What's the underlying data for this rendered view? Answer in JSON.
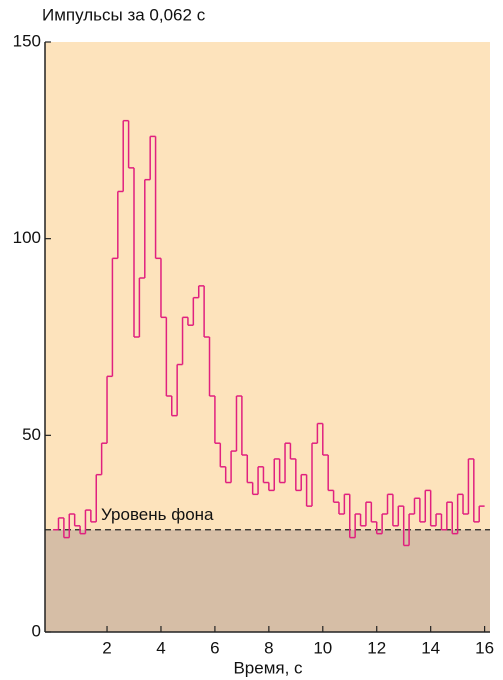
{
  "chart_data": {
    "type": "step",
    "title": "Импульсы за 0,062 с",
    "xlabel": "Время, с",
    "annotation": "Уровень фона",
    "background_level": 26,
    "x": [
      0,
      0.2,
      0.4,
      0.6,
      0.8,
      1.0,
      1.2,
      1.4,
      1.6,
      1.8,
      2.0,
      2.2,
      2.4,
      2.6,
      2.8,
      3.0,
      3.2,
      3.4,
      3.6,
      3.8,
      4.0,
      4.2,
      4.4,
      4.6,
      4.8,
      5.0,
      5.2,
      5.4,
      5.6,
      5.8,
      6.0,
      6.2,
      6.4,
      6.6,
      6.8,
      7.0,
      7.2,
      7.4,
      7.6,
      7.8,
      8.0,
      8.2,
      8.4,
      8.6,
      8.8,
      9.0,
      9.2,
      9.4,
      9.6,
      9.8,
      10.0,
      10.2,
      10.4,
      10.6,
      10.8,
      11.0,
      11.2,
      11.4,
      11.6,
      11.8,
      12.0,
      12.2,
      12.4,
      12.6,
      12.8,
      13.0,
      13.2,
      13.4,
      13.6,
      13.8,
      14.0,
      14.2,
      14.4,
      14.6,
      14.8,
      15.0,
      15.2,
      15.4,
      15.6,
      15.8
    ],
    "values": [
      26,
      29,
      24,
      30,
      27,
      25,
      31,
      28,
      40,
      48,
      65,
      95,
      112,
      130,
      118,
      75,
      90,
      115,
      126,
      95,
      80,
      60,
      55,
      68,
      80,
      78,
      85,
      88,
      75,
      60,
      48,
      42,
      38,
      46,
      60,
      45,
      38,
      35,
      42,
      38,
      36,
      44,
      38,
      48,
      44,
      36,
      40,
      32,
      48,
      53,
      45,
      36,
      33,
      30,
      35,
      24,
      30,
      27,
      33,
      28,
      25,
      30,
      35,
      27,
      32,
      22,
      30,
      34,
      28,
      36,
      27,
      30,
      26,
      33,
      25,
      35,
      30,
      44,
      28,
      32
    ],
    "color": "#e0207f",
    "plot_color": "#fde3bc",
    "background_color": "#d6bea6",
    "xlim": [
      -0.3,
      16.2
    ],
    "xticks": [
      2,
      4,
      6,
      8,
      10,
      12,
      14,
      16
    ],
    "ylim": [
      0,
      150
    ],
    "yticks": [
      0,
      50,
      100,
      150
    ]
  }
}
